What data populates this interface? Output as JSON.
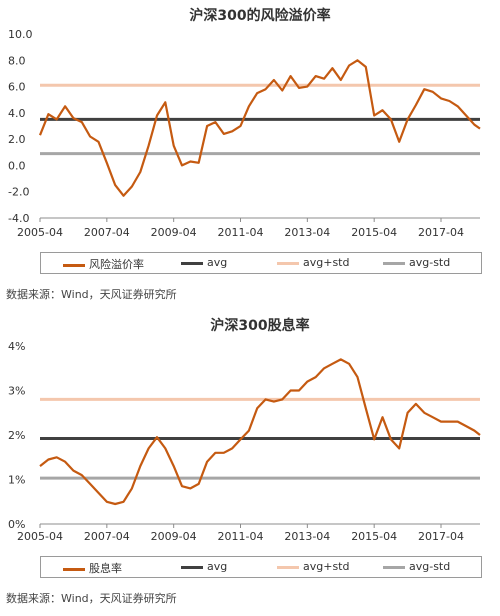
{
  "source_note": "数据来源：Wind，天风证券研究所",
  "colors": {
    "series": "#c55a11",
    "avg": "#404040",
    "avg_plus_std": "#f4c7ad",
    "avg_minus_std": "#a6a6a6"
  },
  "chart_data": [
    {
      "type": "line",
      "title": "沪深300的风险溢价率",
      "xlabel": "",
      "ylabel": "",
      "x_ticks": [
        "2005-04",
        "2007-04",
        "2009-04",
        "2011-04",
        "2013-04",
        "2015-04",
        "2017-04"
      ],
      "y_ticks": [
        "10.0",
        "8.0",
        "6.0",
        "4.0",
        "2.0",
        "0.0",
        "-2.0",
        "-4.0"
      ],
      "xlim": [
        "2005-04",
        "2018-06"
      ],
      "ylim": [
        -4.0,
        10.0
      ],
      "grid": false,
      "legend": "bottom",
      "series": [
        {
          "name": "风险溢价率",
          "color": "#c55a11",
          "x": [
            "2005-04",
            "2005-07",
            "2005-10",
            "2006-01",
            "2006-04",
            "2006-07",
            "2006-10",
            "2007-01",
            "2007-04",
            "2007-07",
            "2007-10",
            "2008-01",
            "2008-04",
            "2008-07",
            "2008-10",
            "2009-01",
            "2009-04",
            "2009-07",
            "2009-10",
            "2010-01",
            "2010-04",
            "2010-07",
            "2010-10",
            "2011-01",
            "2011-04",
            "2011-07",
            "2011-10",
            "2012-01",
            "2012-04",
            "2012-07",
            "2012-10",
            "2013-01",
            "2013-04",
            "2013-07",
            "2013-10",
            "2014-01",
            "2014-04",
            "2014-07",
            "2014-10",
            "2015-01",
            "2015-04",
            "2015-07",
            "2015-10",
            "2016-01",
            "2016-04",
            "2016-07",
            "2016-10",
            "2017-01",
            "2017-04",
            "2017-07",
            "2017-10",
            "2018-01",
            "2018-04",
            "2018-06"
          ],
          "values": [
            2.3,
            3.9,
            3.5,
            4.5,
            3.6,
            3.3,
            2.2,
            1.8,
            0.2,
            -1.5,
            -2.3,
            -1.6,
            -0.5,
            1.5,
            3.8,
            4.8,
            1.5,
            0.0,
            0.3,
            0.2,
            3.0,
            3.3,
            2.4,
            2.6,
            3.0,
            4.5,
            5.5,
            5.8,
            6.5,
            5.7,
            6.8,
            5.9,
            6.0,
            6.8,
            6.6,
            7.4,
            6.5,
            7.6,
            8.0,
            7.5,
            3.8,
            4.2,
            3.5,
            1.8,
            3.5,
            4.6,
            5.8,
            5.6,
            5.1,
            4.9,
            4.5,
            3.8,
            3.1,
            2.8
          ]
        },
        {
          "name": "avg",
          "color": "#404040",
          "constant": 3.5
        },
        {
          "name": "avg+std",
          "color": "#f4c7ad",
          "constant": 6.1
        },
        {
          "name": "avg-std",
          "color": "#a6a6a6",
          "constant": 0.9
        }
      ]
    },
    {
      "type": "line",
      "title": "沪深300股息率",
      "xlabel": "",
      "ylabel": "",
      "x_ticks": [
        "2005-04",
        "2007-04",
        "2009-04",
        "2011-04",
        "2013-04",
        "2015-04",
        "2017-04"
      ],
      "y_ticks": [
        "4%",
        "3%",
        "2%",
        "1%",
        "0%"
      ],
      "xlim": [
        "2005-04",
        "2018-06"
      ],
      "ylim": [
        0,
        4
      ],
      "grid": false,
      "legend": "bottom",
      "series": [
        {
          "name": "股息率",
          "color": "#c55a11",
          "x": [
            "2005-04",
            "2005-07",
            "2005-10",
            "2006-01",
            "2006-04",
            "2006-07",
            "2006-10",
            "2007-01",
            "2007-04",
            "2007-07",
            "2007-10",
            "2008-01",
            "2008-04",
            "2008-07",
            "2008-10",
            "2009-01",
            "2009-04",
            "2009-07",
            "2009-10",
            "2010-01",
            "2010-04",
            "2010-07",
            "2010-10",
            "2011-01",
            "2011-04",
            "2011-07",
            "2011-10",
            "2012-01",
            "2012-04",
            "2012-07",
            "2012-10",
            "2013-01",
            "2013-04",
            "2013-07",
            "2013-10",
            "2014-01",
            "2014-04",
            "2014-07",
            "2014-10",
            "2015-01",
            "2015-04",
            "2015-07",
            "2015-10",
            "2016-01",
            "2016-04",
            "2016-07",
            "2016-10",
            "2017-01",
            "2017-04",
            "2017-07",
            "2017-10",
            "2018-01",
            "2018-04",
            "2018-06"
          ],
          "values": [
            1.3,
            1.45,
            1.5,
            1.4,
            1.2,
            1.1,
            0.9,
            0.7,
            0.5,
            0.45,
            0.5,
            0.8,
            1.3,
            1.7,
            1.95,
            1.7,
            1.3,
            0.85,
            0.8,
            0.9,
            1.4,
            1.6,
            1.6,
            1.7,
            1.9,
            2.1,
            2.6,
            2.8,
            2.75,
            2.8,
            3.0,
            3.0,
            3.2,
            3.3,
            3.5,
            3.6,
            3.7,
            3.6,
            3.3,
            2.6,
            1.9,
            2.4,
            1.9,
            1.7,
            2.5,
            2.7,
            2.5,
            2.4,
            2.3,
            2.3,
            2.3,
            2.2,
            2.1,
            2.0
          ]
        },
        {
          "name": "avg",
          "color": "#404040",
          "constant": 1.92
        },
        {
          "name": "avg+std",
          "color": "#f4c7ad",
          "constant": 2.8
        },
        {
          "name": "avg-std",
          "color": "#a6a6a6",
          "constant": 1.03
        }
      ]
    }
  ]
}
